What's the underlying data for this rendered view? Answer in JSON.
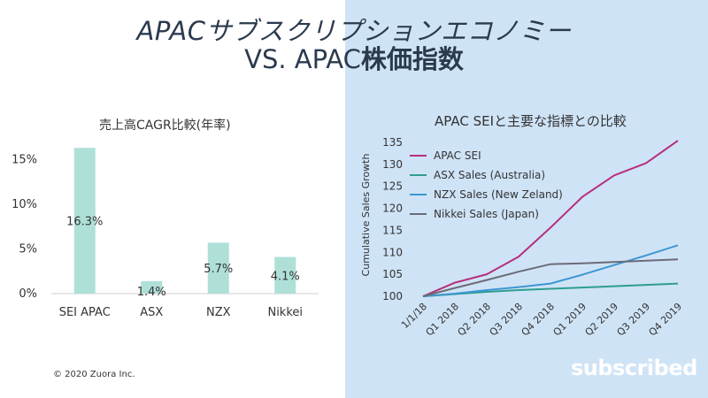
{
  "slide": {
    "title_line1": "APACサブスクリプションエコノミー",
    "title_line2_a": "VS. APAC",
    "title_line2_b": "株価指数",
    "copyright": "© 2020 Zuora Inc.",
    "brand": "subscribed",
    "colors": {
      "right_bg": "#cfe3f6",
      "bar": "#aee0d8",
      "title": "#2b3a4e"
    }
  },
  "chart_data": [
    {
      "type": "bar",
      "title": "売上高CAGR比較(年率)",
      "categories": [
        "SEI APAC",
        "ASX",
        "NZX",
        "Nikkei"
      ],
      "values": [
        16.3,
        1.4,
        5.7,
        4.1
      ],
      "data_labels": [
        "16.3%",
        "1.4%",
        "5.7%",
        "4.1%"
      ],
      "yticks": [
        0,
        5,
        10,
        15
      ],
      "ytick_labels": [
        "0%",
        "5%",
        "10%",
        "15%"
      ],
      "ylim": [
        0,
        18
      ],
      "color": "#aee0d8",
      "grid": false
    },
    {
      "type": "line",
      "title": "APAC SEIと主要な指標との比較",
      "ylabel": "Cumulative Sales Growth",
      "x": [
        "1/1/18",
        "Q1 2018",
        "Q2 2018",
        "Q3 2018",
        "Q4 2018",
        "Q1 2019",
        "Q2 2019",
        "Q3 2019",
        "Q4 2019"
      ],
      "ylim": [
        100,
        135
      ],
      "yticks": [
        100,
        105,
        110,
        115,
        120,
        125,
        130,
        135
      ],
      "legend": "top-left",
      "grid": false,
      "series": [
        {
          "name": "APAC SEI",
          "color": "#b5307a",
          "values": [
            100,
            103.1,
            105,
            109,
            115.6,
            122.6,
            127.5,
            130.3,
            135.4
          ]
        },
        {
          "name": "ASX Sales (Australia)",
          "color": "#2e9e90",
          "values": [
            100,
            100.5,
            101,
            101.4,
            101.7,
            102,
            102.3,
            102.6,
            102.9
          ]
        },
        {
          "name": "NZX Sales (New Zeland)",
          "color": "#3d96d2",
          "values": [
            100,
            100.6,
            101.4,
            102.1,
            102.9,
            104.9,
            107.1,
            109.3,
            111.6
          ]
        },
        {
          "name": "Nikkei Sales (Japan)",
          "color": "#6b6b78",
          "values": [
            100,
            101.9,
            103.7,
            105.6,
            107.3,
            107.5,
            107.8,
            108.1,
            108.4
          ]
        }
      ]
    }
  ]
}
